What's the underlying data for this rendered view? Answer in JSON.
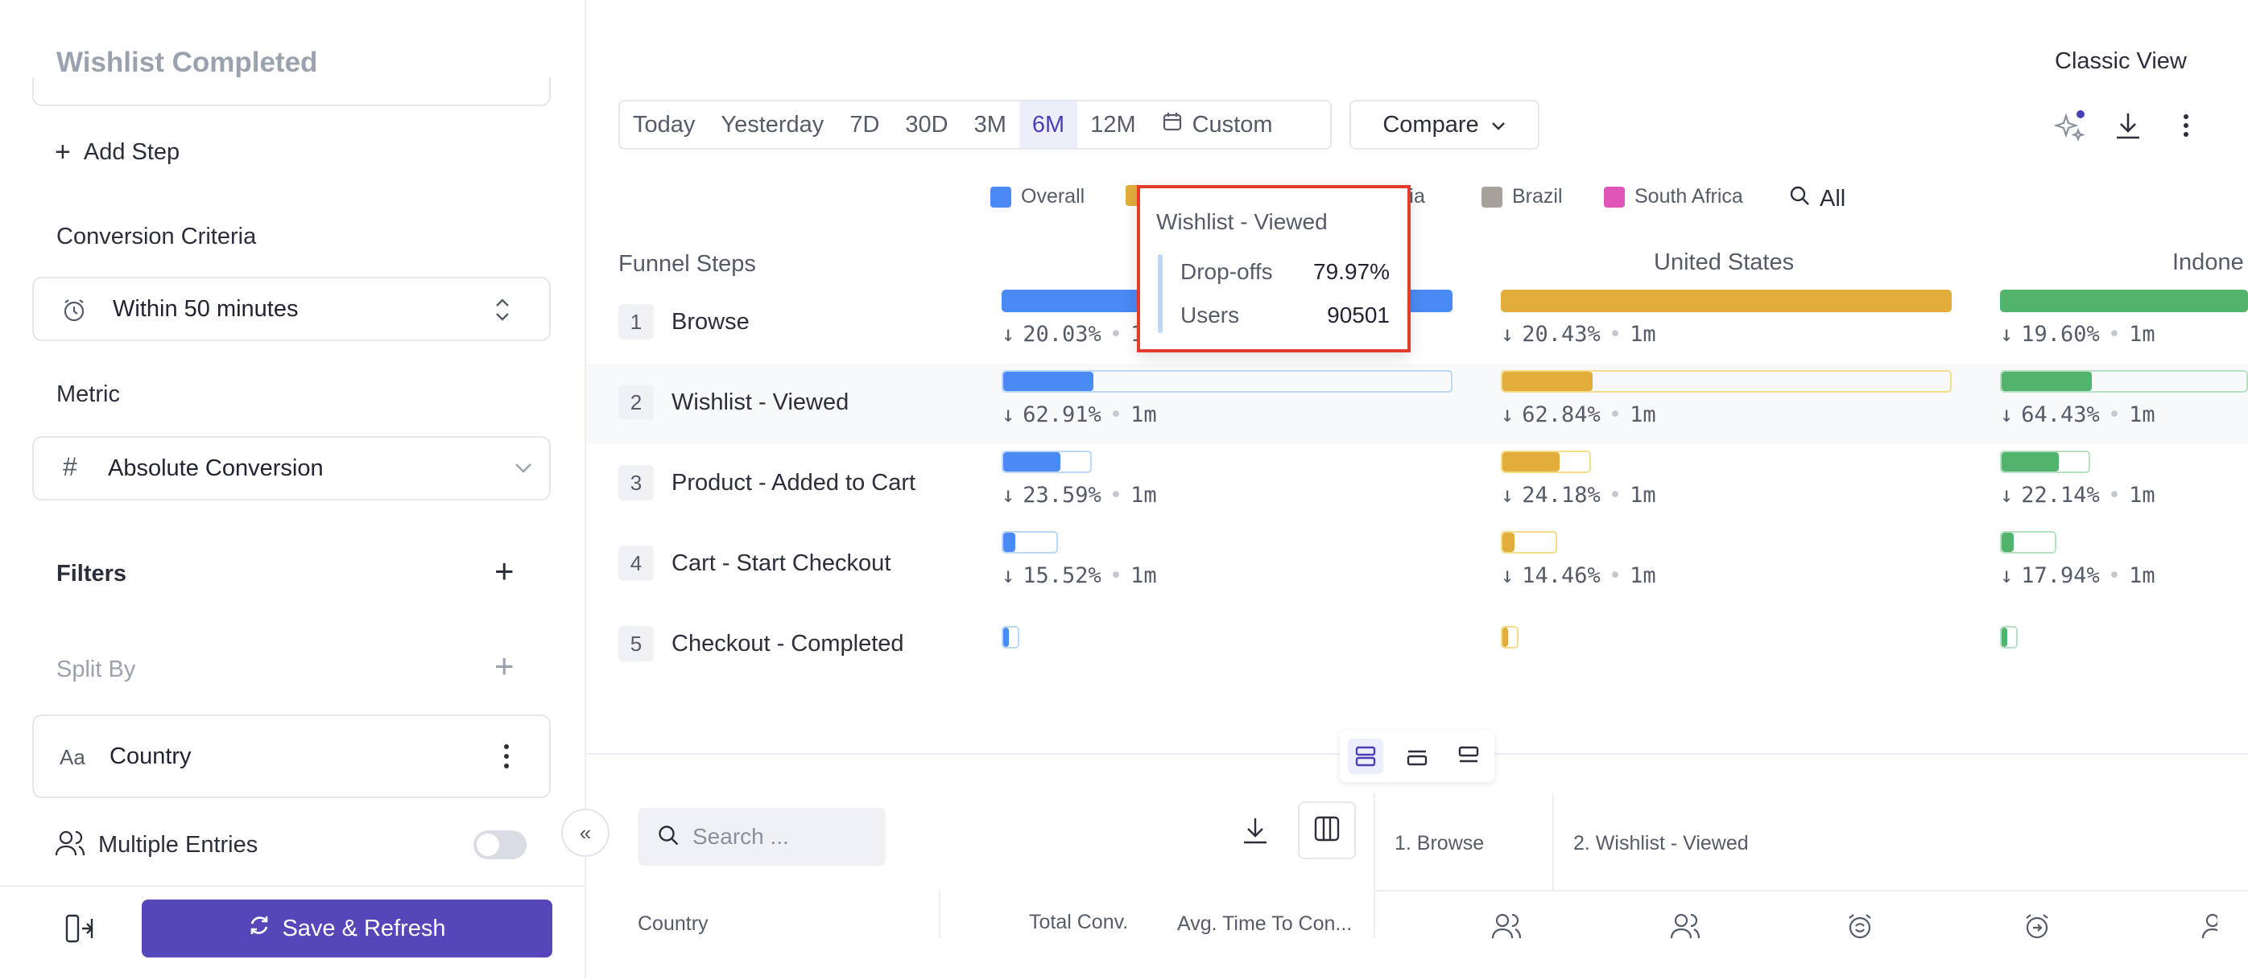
{
  "sidebar": {
    "title": "Wishlist Completed",
    "add_step": "Add Step",
    "conversion_criteria_label": "Conversion Criteria",
    "conversion_criteria_value": "Within 50 minutes",
    "metric_label": "Metric",
    "metric_value": "Absolute Conversion",
    "filters_label": "Filters",
    "split_by_label": "Split By",
    "split_by_value": "Country",
    "split_by_type_icon": "Aa",
    "multiple_entries_label": "Multiple Entries",
    "multiple_entries_on": false,
    "save_label": "Save & Refresh"
  },
  "header": {
    "classic_view": "Classic View",
    "date_ranges": [
      "Today",
      "Yesterday",
      "7D",
      "30D",
      "3M",
      "6M",
      "12M"
    ],
    "active_range": "6M",
    "custom_label": "Custom",
    "compare_label": "Compare"
  },
  "legend": {
    "items": [
      {
        "label": "Overall",
        "color": "#4a8af4"
      },
      {
        "label": "esia",
        "color": "#e3ad3c"
      },
      {
        "label": "Brazil",
        "color": "#a6a19a"
      },
      {
        "label": "South Africa",
        "color": "#e056b8"
      }
    ],
    "all_label": "All"
  },
  "funnel": {
    "steps_header": "Funnel Steps",
    "steps": [
      {
        "num": "1",
        "label": "Browse"
      },
      {
        "num": "2",
        "label": "Wishlist - Viewed"
      },
      {
        "num": "3",
        "label": "Product - Added to Cart"
      },
      {
        "num": "4",
        "label": "Cart - Start Checkout"
      },
      {
        "num": "5",
        "label": "Checkout - Completed"
      }
    ],
    "columns": [
      {
        "name": "",
        "color": "#4a8af4",
        "light": "#bcd8f5",
        "fractions": [
          1.0,
          0.2,
          0.2,
          0.12,
          0.04
        ],
        "dropoffs": [
          "20.03%",
          "62.91%",
          "23.59%",
          "15.52%"
        ]
      },
      {
        "name": "United States",
        "color": "#e3ad3c",
        "light": "#f3dc8a",
        "fractions": [
          1.0,
          0.2,
          0.2,
          0.12,
          0.04
        ],
        "dropoffs": [
          "20.43%",
          "62.84%",
          "24.18%",
          "14.46%"
        ]
      },
      {
        "name": "Indone",
        "color": "#52b36c",
        "light": "#b7e0c2",
        "fractions": [
          1.0,
          0.2,
          0.2,
          0.12,
          0.04
        ],
        "dropoffs": [
          "19.60%",
          "64.43%",
          "22.14%",
          "17.94%"
        ]
      }
    ],
    "time_label": "1m"
  },
  "tooltip": {
    "title": "Wishlist - Viewed",
    "dropoffs_label": "Drop-offs",
    "dropoffs_value": "79.97%",
    "users_label": "Users",
    "users_value": "90501"
  },
  "table": {
    "search_placeholder": "Search ...",
    "headers": {
      "country": "Country",
      "total_conv": "Total Conv.",
      "avg_time": "Avg. Time To Con...",
      "browse": "1. Browse",
      "wishlist_viewed": "2. Wishlist - Viewed"
    }
  }
}
